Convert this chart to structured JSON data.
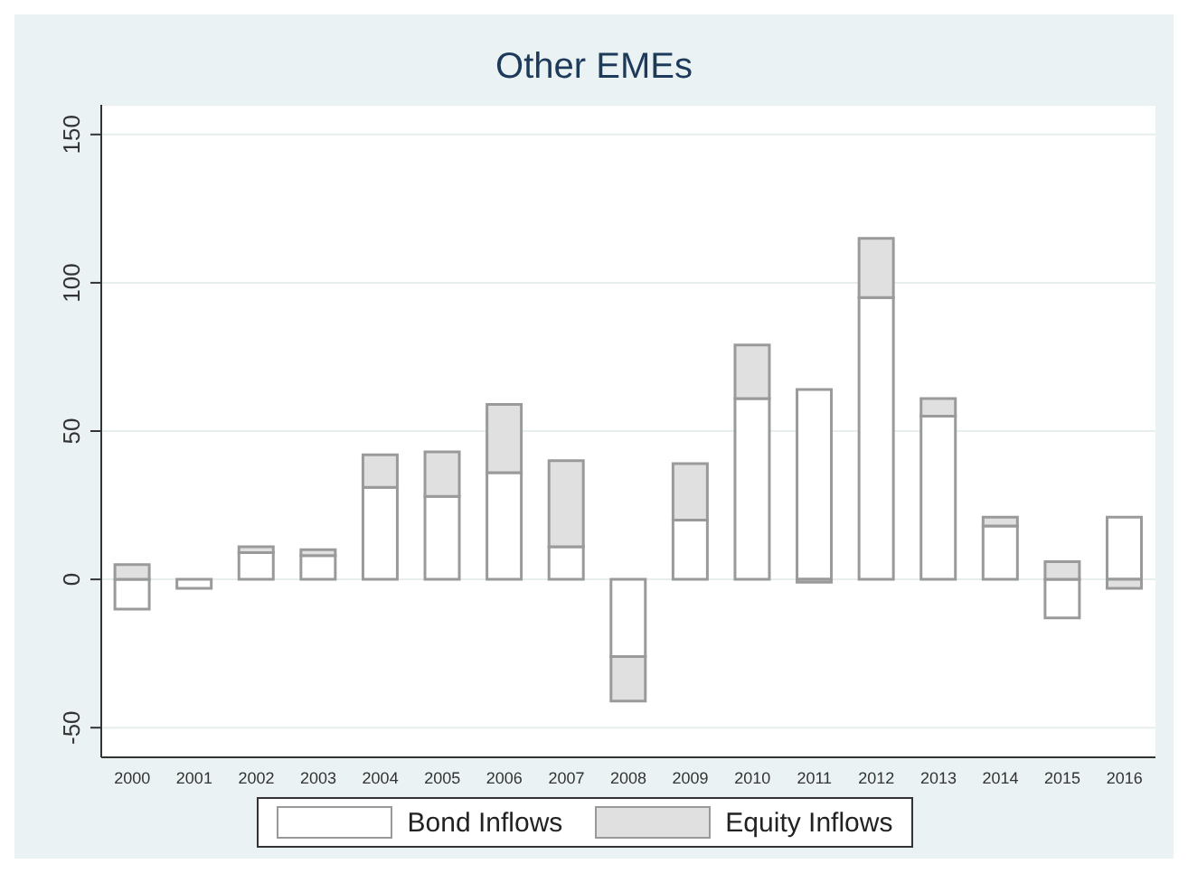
{
  "chart_data": {
    "type": "bar",
    "title": "Other EMEs",
    "stacked": true,
    "categories": [
      "2000",
      "2001",
      "2002",
      "2003",
      "2004",
      "2005",
      "2006",
      "2007",
      "2008",
      "2009",
      "2010",
      "2011",
      "2012",
      "2013",
      "2014",
      "2015",
      "2016"
    ],
    "series": [
      {
        "name": "Bond Inflows",
        "color": "#ffffff",
        "values": [
          -10,
          -3,
          9,
          8,
          31,
          28,
          36,
          11,
          -26,
          20,
          61,
          64,
          95,
          55,
          18,
          -13,
          21
        ]
      },
      {
        "name": "Equity Inflows",
        "color": "#e0e0e0",
        "values": [
          5,
          0,
          2,
          2,
          11,
          15,
          23,
          29,
          -15,
          19,
          18,
          -1,
          20,
          6,
          3,
          6,
          -3
        ]
      }
    ],
    "ylim": [
      -60,
      160
    ],
    "yticks": [
      -50,
      0,
      50,
      100,
      150
    ],
    "grid": "y",
    "legend": "bottom"
  }
}
